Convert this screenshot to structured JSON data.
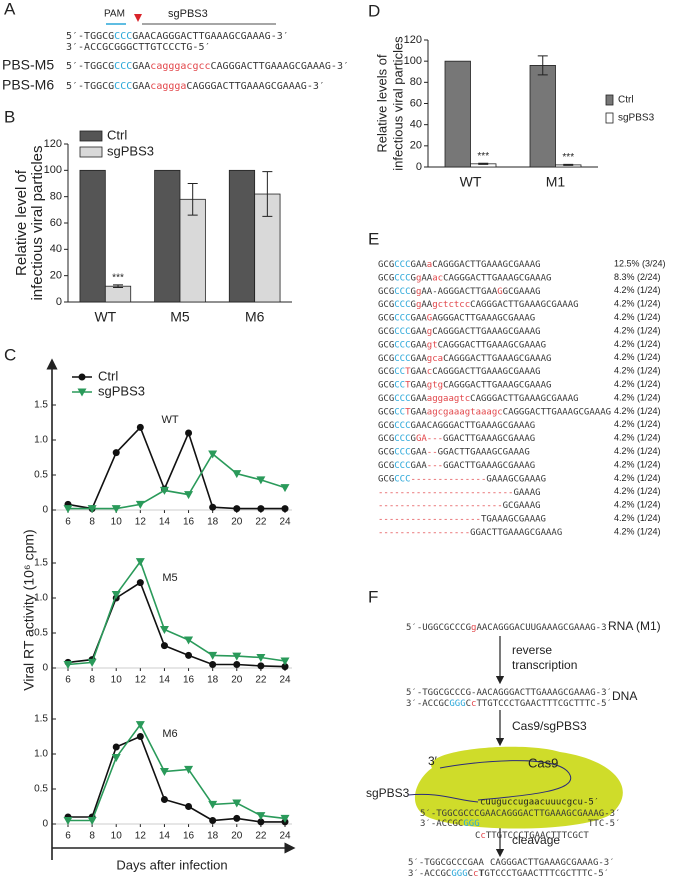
{
  "panel_a": {
    "label": "A",
    "pam": "PAM",
    "guide": "sgPBS3",
    "lines": [
      [
        [
          "5′-TGGCG",
          "#3a3a3a"
        ],
        [
          "CCC",
          "#2aa7d9"
        ],
        [
          "GAACAGGGACTTGAAAGCGAAAG-3′",
          "#3a3a3a"
        ]
      ],
      [
        [
          "3′-ACCGCGGGCTTGTCCCTG-5′",
          "#3a3a3a"
        ]
      ]
    ],
    "mutants": [
      {
        "name": "PBS-M5",
        "seq": [
          [
            "5′-TGGCG",
            "#3a3a3a"
          ],
          [
            "CCC",
            "#2aa7d9"
          ],
          [
            "GAA",
            "#3a3a3a"
          ],
          [
            "cagggacgcc",
            "#e2474b"
          ],
          [
            "CAGGGACTTGAAAGCGAAAG-3′",
            "#3a3a3a"
          ]
        ]
      },
      {
        "name": "PBS-M6",
        "seq": [
          [
            "5′-TGGCG",
            "#3a3a3a"
          ],
          [
            "CCC",
            "#2aa7d9"
          ],
          [
            "GAA",
            "#3a3a3a"
          ],
          [
            "caggga",
            "#e2474b"
          ],
          [
            "CAGGGACTTGAAAGCGAAAG-3′",
            "#3a3a3a"
          ]
        ]
      }
    ]
  },
  "chart_data": [
    {
      "type": "bar",
      "panel": "B",
      "ylabel": [
        "Relative level of",
        "infectious viral particles"
      ],
      "categories": [
        "WT",
        "M5",
        "M6"
      ],
      "series": [
        {
          "name": "Ctrl",
          "color": "#555555",
          "values": [
            100,
            100,
            100
          ],
          "errors": [
            0,
            0,
            0
          ]
        },
        {
          "name": "sgPBS3",
          "color": "#d9d9d9",
          "values": [
            12,
            78,
            82
          ],
          "errors": [
            1,
            12,
            17
          ],
          "value_notes": [
            "***",
            null,
            null
          ]
        }
      ],
      "ylim": [
        0,
        120
      ],
      "yticks": [
        0,
        20,
        40,
        60,
        80,
        100,
        120
      ]
    },
    {
      "type": "line",
      "panel": "C",
      "ylabel": "Viral RT activity (10⁶ cpm)",
      "xlabel": "Days after infection",
      "x": [
        6,
        8,
        10,
        12,
        14,
        16,
        18,
        20,
        22,
        24
      ],
      "series": [
        {
          "name": "Ctrl",
          "color": "#111111",
          "marker": "circle"
        },
        {
          "name": "sgPBS3",
          "color": "#2a9a5a",
          "marker": "triangle"
        }
      ],
      "ylim": [
        0,
        1.6
      ],
      "yticks": [
        0,
        0.5,
        {
          "value": 1,
          "label": "1.0"
        },
        1.5
      ],
      "facets": [
        {
          "title": "WT",
          "values": [
            [
              0.08,
              0.02,
              0.82,
              1.18,
              0.3,
              1.1,
              0.04,
              0.02,
              0.02,
              0.02
            ],
            [
              0.02,
              0.02,
              0.02,
              0.08,
              0.28,
              0.22,
              0.8,
              0.52,
              0.43,
              0.32
            ]
          ]
        },
        {
          "title": "M5",
          "values": [
            [
              0.08,
              0.12,
              1.0,
              1.22,
              0.32,
              0.18,
              0.05,
              0.05,
              0.03,
              0.02
            ],
            [
              0.05,
              0.08,
              1.05,
              1.52,
              0.55,
              0.4,
              0.18,
              0.17,
              0.15,
              0.1
            ]
          ]
        },
        {
          "title": "M6",
          "values": [
            [
              0.1,
              0.1,
              1.1,
              1.25,
              0.35,
              0.25,
              0.05,
              0.08,
              0.03,
              0.03
            ],
            [
              0.05,
              0.05,
              0.95,
              1.42,
              0.75,
              0.78,
              0.28,
              0.3,
              0.12,
              0.08
            ]
          ]
        }
      ]
    },
    {
      "type": "bar",
      "panel": "D",
      "ylabel": [
        "Relative levels of",
        "infectious viral particles"
      ],
      "categories": [
        "WT",
        "M1"
      ],
      "series": [
        {
          "name": "Ctrl",
          "color": "#777777",
          "values": [
            100,
            96
          ],
          "errors": [
            0,
            9
          ]
        },
        {
          "name": "sgPBS3",
          "color": "#ffffff",
          "values": [
            3,
            2
          ],
          "errors": [
            0.5,
            0.5
          ],
          "value_notes": [
            "***",
            "***"
          ]
        }
      ],
      "ylim": [
        0,
        120
      ],
      "yticks": [
        0,
        20,
        40,
        60,
        80,
        100,
        120
      ]
    }
  ],
  "panel_e": {
    "label": "E",
    "rows": [
      {
        "seq": [
          [
            "GCG",
            "#3a3a3a"
          ],
          [
            "CCC",
            "#2aa7d9"
          ],
          [
            "GAA",
            "#3a3a3a"
          ],
          [
            "a",
            "#e2474b"
          ],
          [
            "CAGGGACTTGAAAGCGAAAG",
            "#3a3a3a"
          ]
        ],
        "freq": "12.5% (3/24)"
      },
      {
        "seq": [
          [
            "GCG",
            "#3a3a3a"
          ],
          [
            "CCC",
            "#2aa7d9"
          ],
          [
            "G",
            "#3a3a3a"
          ],
          [
            "g",
            "#e2474b"
          ],
          [
            "AA",
            "#3a3a3a"
          ],
          [
            "ac",
            "#e2474b"
          ],
          [
            "CAGGGACTTGAAAGCGAAAG",
            "#3a3a3a"
          ]
        ],
        "freq": "8.3% (2/24)"
      },
      {
        "seq": [
          [
            "GCG",
            "#3a3a3a"
          ],
          [
            "CCC",
            "#2aa7d9"
          ],
          [
            "G",
            "#3a3a3a"
          ],
          [
            "g",
            "#e2474b"
          ],
          [
            "AA-AGGGACTTGAA",
            "#3a3a3a"
          ],
          [
            "G",
            "#e2474b"
          ],
          [
            "GCGAAAG",
            "#3a3a3a"
          ]
        ],
        "freq": "4.2% (1/24)"
      },
      {
        "seq": [
          [
            "GCG",
            "#3a3a3a"
          ],
          [
            "CCC",
            "#2aa7d9"
          ],
          [
            "G",
            "#3a3a3a"
          ],
          [
            "g",
            "#e2474b"
          ],
          [
            "AA",
            "#3a3a3a"
          ],
          [
            "gctctcc",
            "#e2474b"
          ],
          [
            "CAGGGACTTGAAAGCGAAAG",
            "#3a3a3a"
          ]
        ],
        "freq": "4.2% (1/24)"
      },
      {
        "seq": [
          [
            "GCG",
            "#3a3a3a"
          ],
          [
            "CCC",
            "#2aa7d9"
          ],
          [
            "GAA",
            "#3a3a3a"
          ],
          [
            "G",
            "#e2474b"
          ],
          [
            "AGGGACTTGAAAGCGAAAG",
            "#3a3a3a"
          ]
        ],
        "freq": "4.2% (1/24)"
      },
      {
        "seq": [
          [
            "GCG",
            "#3a3a3a"
          ],
          [
            "CCC",
            "#2aa7d9"
          ],
          [
            "GAA",
            "#3a3a3a"
          ],
          [
            "g",
            "#e2474b"
          ],
          [
            "CAGGGACTTGAAAGCGAAAG",
            "#3a3a3a"
          ]
        ],
        "freq": "4.2% (1/24)"
      },
      {
        "seq": [
          [
            "GCG",
            "#3a3a3a"
          ],
          [
            "CCC",
            "#2aa7d9"
          ],
          [
            "GAA",
            "#3a3a3a"
          ],
          [
            "gt",
            "#e2474b"
          ],
          [
            "CAGGGACTTGAAAGCGAAAG",
            "#3a3a3a"
          ]
        ],
        "freq": "4.2% (1/24)"
      },
      {
        "seq": [
          [
            "GCG",
            "#3a3a3a"
          ],
          [
            "CCC",
            "#2aa7d9"
          ],
          [
            "GAA",
            "#3a3a3a"
          ],
          [
            "gca",
            "#e2474b"
          ],
          [
            "CAGGGACTTGAAAGCGAAAG",
            "#3a3a3a"
          ]
        ],
        "freq": "4.2% (1/24)"
      },
      {
        "seq": [
          [
            "GCG",
            "#3a3a3a"
          ],
          [
            "CC",
            "#2aa7d9"
          ],
          [
            "T",
            "#e2474b"
          ],
          [
            "GAA",
            "#3a3a3a"
          ],
          [
            "c",
            "#e2474b"
          ],
          [
            "CAGGGACTTGAAAGCGAAAG",
            "#3a3a3a"
          ]
        ],
        "freq": "4.2% (1/24)"
      },
      {
        "seq": [
          [
            "GCG",
            "#3a3a3a"
          ],
          [
            "CC",
            "#2aa7d9"
          ],
          [
            "T",
            "#e2474b"
          ],
          [
            "GAA",
            "#3a3a3a"
          ],
          [
            "gtg",
            "#e2474b"
          ],
          [
            "CAGGGACTTGAAAGCGAAAG",
            "#3a3a3a"
          ]
        ],
        "freq": "4.2% (1/24)"
      },
      {
        "seq": [
          [
            "GCG",
            "#3a3a3a"
          ],
          [
            "CCC",
            "#2aa7d9"
          ],
          [
            "GAA",
            "#3a3a3a"
          ],
          [
            "aggaagtc",
            "#e2474b"
          ],
          [
            "CAGGGACTTGAAAGCGAAAG",
            "#3a3a3a"
          ]
        ],
        "freq": "4.2% (1/24)"
      },
      {
        "seq": [
          [
            "GCG",
            "#3a3a3a"
          ],
          [
            "CC",
            "#2aa7d9"
          ],
          [
            "T",
            "#e2474b"
          ],
          [
            "GAA",
            "#3a3a3a"
          ],
          [
            "agcgaaagtaaagc",
            "#e2474b"
          ],
          [
            "CAGGGACTTGAAAGCGAAAG",
            "#3a3a3a"
          ]
        ],
        "freq": "4.2% (1/24)"
      },
      {
        "seq": [
          [
            "GCG",
            "#3a3a3a"
          ],
          [
            "CCC",
            "#2aa7d9"
          ],
          [
            "GAACAGGGACTTGAAAGCGAAAG",
            "#3a3a3a"
          ]
        ],
        "freq": "4.2% (1/24)"
      },
      {
        "seq": [
          [
            "GCG",
            "#3a3a3a"
          ],
          [
            "CCC",
            "#2aa7d9"
          ],
          [
            "G",
            "#3a3a3a"
          ],
          [
            "GA---",
            "#e2474b"
          ],
          [
            "GGACTTGAAAGCGAAAG",
            "#3a3a3a"
          ]
        ],
        "freq": "4.2% (1/24)"
      },
      {
        "seq": [
          [
            "GCG",
            "#3a3a3a"
          ],
          [
            "CCC",
            "#2aa7d9"
          ],
          [
            "GAA",
            "#3a3a3a"
          ],
          [
            "--",
            "#e2474b"
          ],
          [
            "GGACTTGAAAGCGAAAG",
            "#3a3a3a"
          ]
        ],
        "freq": "4.2% (1/24)"
      },
      {
        "seq": [
          [
            "GCG",
            "#3a3a3a"
          ],
          [
            "CCC",
            "#2aa7d9"
          ],
          [
            "GAA",
            "#3a3a3a"
          ],
          [
            "---",
            "#e2474b"
          ],
          [
            "GGACTTGAAAGCGAAAG",
            "#3a3a3a"
          ]
        ],
        "freq": "4.2% (1/24)"
      },
      {
        "seq": [
          [
            "GCG",
            "#3a3a3a"
          ],
          [
            "CCC",
            "#2aa7d9"
          ],
          [
            "--------------",
            "#e2474b"
          ],
          [
            "GAAAGCGAAAG",
            "#3a3a3a"
          ]
        ],
        "freq": "4.2% (1/24)"
      },
      {
        "seq": [
          [
            "-------------------------",
            "#e2474b"
          ],
          [
            "GAAAG",
            "#3a3a3a"
          ]
        ],
        "freq": "4.2% (1/24)"
      },
      {
        "seq": [
          [
            "-----------------------",
            "#e2474b"
          ],
          [
            "GCGAAAG",
            "#3a3a3a"
          ]
        ],
        "freq": "4.2% (1/24)"
      },
      {
        "seq": [
          [
            "-------------------",
            "#e2474b"
          ],
          [
            "TGAAAGCGAAAG",
            "#3a3a3a"
          ]
        ],
        "freq": "4.2% (1/24)"
      },
      {
        "seq": [
          [
            "-----------------",
            "#e2474b"
          ],
          [
            "GGACTTGAAAGCGAAAG",
            "#3a3a3a"
          ]
        ],
        "freq": "4.2% (1/24)"
      }
    ]
  },
  "panel_f": {
    "label": "F",
    "rna": [
      [
        "5′-UGGCGCCCG",
        "#3a3a3a"
      ],
      [
        "g",
        "#e2474b"
      ],
      [
        "AACAGGGACUUGAAAGCGAAAG-3′",
        "#3a3a3a"
      ]
    ],
    "rna_label": "RNA (M1)",
    "step1": [
      "reverse",
      "transcription"
    ],
    "dna": [
      [
        [
          "5′-TGGCGCCCG-AACAGGGACTTGAAAGCGAAAG-3′",
          "#3a3a3a"
        ]
      ],
      [
        [
          "3′-ACCGC",
          "#3a3a3a"
        ],
        [
          "GGG",
          "#2aa7d9"
        ],
        [
          "C",
          "#3a3a3a"
        ],
        [
          "c",
          "#e2474b"
        ],
        [
          "TTGTCCCTGAACTTTCGCTTTC-5′",
          "#3a3a3a"
        ]
      ]
    ],
    "dna_label": "DNA",
    "step2": "Cas9/sgPBS3",
    "protein": "Cas9",
    "guide": "sgPBS3",
    "guide_end": "3′",
    "guide_seq": "cuuguccugaacuuucgcu-5′",
    "bound": [
      [
        [
          "5′-TGGCGCCCGAACAGGGACTTGAAAGCGAAAG-3′",
          "#3a3a3a"
        ]
      ],
      [
        [
          "3′-ACCGC",
          "#3a3a3a"
        ],
        [
          "GGG",
          "#2aa7d9"
        ]
      ],
      [
        [
          "TTC-5′",
          "#3a3a3a"
        ]
      ],
      [
        [
          "C",
          "#3a3a3a"
        ],
        [
          "c",
          "#e2474b"
        ],
        [
          "TTGTCCCTGAACTTTCGCT",
          "#3a3a3a"
        ]
      ]
    ],
    "step3": "cleavage",
    "products": [
      [
        [
          [
            "5′-TGGCGCCCGAA",
            "#3a3a3a"
          ]
        ],
        [
          [
            "CAGGGACTTGAAAGCGAAAG-3′",
            "#3a3a3a"
          ]
        ]
      ],
      [
        [
          [
            "3′-ACCGC",
            "#3a3a3a"
          ],
          [
            "GGG",
            "#2aa7d9"
          ],
          [
            "C",
            "#3a3a3a"
          ],
          [
            "c",
            "#e2474b"
          ],
          [
            "T",
            "#3a3a3a"
          ]
        ],
        [
          [
            "TGTCCCTGAACTTTCGCTTTC-5′",
            "#3a3a3a"
          ]
        ]
      ]
    ]
  }
}
